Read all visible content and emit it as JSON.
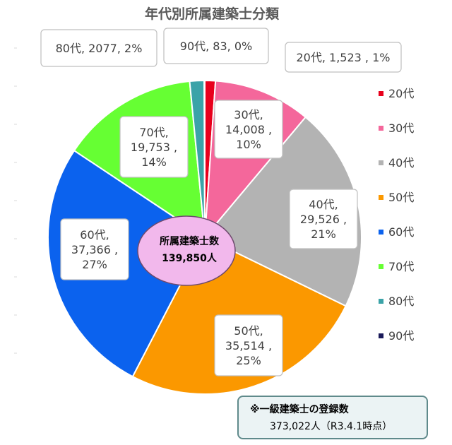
{
  "chart_data": {
    "type": "pie",
    "title": "年代別所属建築士分類",
    "slices": [
      {
        "name": "20代",
        "value": 1523,
        "percent": 1,
        "color": "#e8001c",
        "label": [
          "20代, 1,523 , 1%"
        ]
      },
      {
        "name": "30代",
        "value": 14008,
        "percent": 10,
        "color": "#f4679b",
        "label": [
          "30代,",
          "14,008 ,",
          "10%"
        ]
      },
      {
        "name": "40代",
        "value": 29526,
        "percent": 21,
        "color": "#b3b3b3",
        "label": [
          "40代,",
          "29,526 ,",
          "21%"
        ]
      },
      {
        "name": "50代",
        "value": 35514,
        "percent": 25,
        "color": "#fb9800",
        "label": [
          "50代,",
          "35,514 ,",
          "25%"
        ]
      },
      {
        "name": "60代",
        "value": 37366,
        "percent": 27,
        "color": "#0b62ee",
        "label": [
          "60代,",
          "37,366 ,",
          "27%"
        ]
      },
      {
        "name": "70代",
        "value": 19753,
        "percent": 14,
        "color": "#66ff33",
        "label": [
          "70代,",
          "19,753 ,",
          "14%"
        ]
      },
      {
        "name": "80代",
        "value": 2077,
        "percent": 2,
        "color": "#3ba3a8",
        "label": [
          "80代, 2077, 2%"
        ]
      },
      {
        "name": "90代",
        "value": 83,
        "percent": 0,
        "color": "#1a1a5a",
        "label": [
          "90代, 83, 0%"
        ]
      }
    ],
    "legend": [
      "20代",
      "30代",
      "40代",
      "50代",
      "60代",
      "70代",
      "80代",
      "90代"
    ],
    "legend_position": "right",
    "center_label": {
      "title": "所属建築士数",
      "value": "139,850人",
      "color": "#f2b8ec"
    }
  },
  "note": {
    "line1": "※一級建築士の登録数",
    "line2": "373,022人（R3.4.1時点）"
  }
}
